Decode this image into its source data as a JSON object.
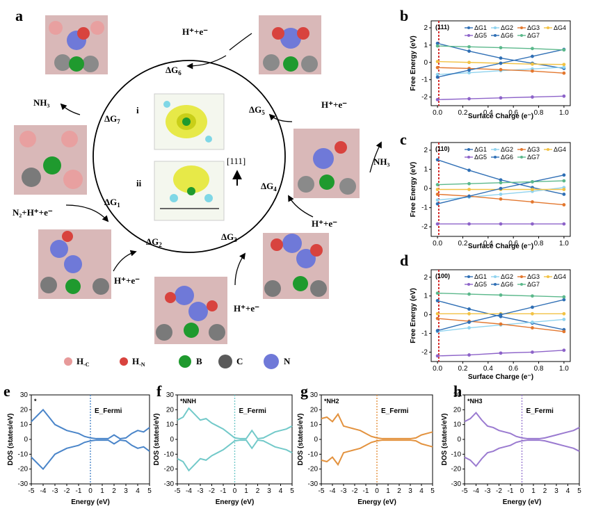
{
  "panel_labels": [
    "a",
    "b",
    "c",
    "d",
    "e",
    "f",
    "g",
    "h"
  ],
  "cycle": {
    "steps": [
      {
        "sym": "ΔG",
        "sub": "1"
      },
      {
        "sym": "ΔG",
        "sub": "2"
      },
      {
        "sym": "ΔG",
        "sub": "3"
      },
      {
        "sym": "ΔG",
        "sub": "4"
      },
      {
        "sym": "ΔG",
        "sub": "5"
      },
      {
        "sym": "ΔG",
        "sub": "6"
      },
      {
        "sym": "ΔG",
        "sub": "7"
      }
    ],
    "reactants": [
      "H⁺+e⁻",
      "H⁺+e⁻",
      "H⁺+e⁻",
      "H⁺+e⁻",
      "H⁺+e⁻",
      "N₂+H⁺+e⁻"
    ],
    "products": [
      "NH₃",
      "NH₃"
    ],
    "inset_labels": [
      "i",
      "ii"
    ],
    "direction": "[111]"
  },
  "legend_atoms": [
    {
      "label": "H",
      "sub": "-C",
      "color": "#e79a9a"
    },
    {
      "label": "H",
      "sub": "-N",
      "color": "#d8433e"
    },
    {
      "label": "B",
      "sub": "",
      "color": "#1f9a2e"
    },
    {
      "label": "C",
      "sub": "",
      "color": "#5a5a5a"
    },
    {
      "label": "N",
      "sub": "",
      "color": "#6f79d8"
    }
  ],
  "colors": {
    "dG1": "#2f6fb5",
    "dG2": "#8fd3ef",
    "dG3": "#e3772e",
    "dG4": "#f2c244",
    "dG5": "#8d63c9",
    "dG6": "#2f6fb5",
    "dG7": "#5bb88b",
    "fermi": "#d42020",
    "dos_e": "#4a85c9",
    "dos_f": "#72c9c9",
    "dos_g": "#e3923e",
    "dos_h": "#9a7ad0"
  },
  "chart_data": [
    {
      "type": "line",
      "panel": "b",
      "annotation": "(111)",
      "xlabel": "Surface Charge (e⁻)",
      "ylabel": "Free Energy (eV)",
      "xlim": [
        -0.05,
        1.05
      ],
      "ylim": [
        -2.5,
        2.4
      ],
      "xticks": [
        "0.0",
        "0.2",
        "0.4",
        "0.6",
        "0.8",
        "1.0"
      ],
      "yticks": [
        "-2",
        "-1",
        "0",
        "1",
        "2"
      ],
      "x": [
        0,
        0.25,
        0.5,
        0.75,
        1.0
      ],
      "series": [
        {
          "name": "ΔG1",
          "values": [
            1.1,
            0.65,
            0.25,
            -0.05,
            -0.35
          ]
        },
        {
          "name": "ΔG2",
          "values": [
            -0.7,
            -0.6,
            -0.48,
            -0.38,
            -0.28
          ]
        },
        {
          "name": "ΔG3",
          "values": [
            -0.3,
            -0.35,
            -0.42,
            -0.5,
            -0.62
          ]
        },
        {
          "name": "ΔG4",
          "values": [
            0.05,
            0.0,
            -0.05,
            -0.1,
            -0.12
          ]
        },
        {
          "name": "ΔG5",
          "values": [
            -2.15,
            -2.1,
            -2.05,
            -2.0,
            -1.95
          ]
        },
        {
          "name": "ΔG6",
          "values": [
            -0.85,
            -0.45,
            -0.05,
            0.35,
            0.75
          ]
        },
        {
          "name": "ΔG7",
          "values": [
            0.95,
            0.9,
            0.85,
            0.8,
            0.72
          ]
        }
      ]
    },
    {
      "type": "line",
      "panel": "c",
      "annotation": "(110)",
      "xlabel": "Surface Charge (e⁻)",
      "ylabel": "Free Energy (eV)",
      "xlim": [
        -0.05,
        1.05
      ],
      "ylim": [
        -2.5,
        2.4
      ],
      "xticks": [
        "0.0",
        "0.2",
        "0.4",
        "0.6",
        "0.8",
        "1.0"
      ],
      "yticks": [
        "-2",
        "-1",
        "0",
        "1",
        "2"
      ],
      "x": [
        0,
        0.25,
        0.5,
        0.75,
        1.0
      ],
      "series": [
        {
          "name": "ΔG1",
          "values": [
            1.5,
            0.95,
            0.45,
            0.05,
            -0.3
          ]
        },
        {
          "name": "ΔG2",
          "values": [
            -0.6,
            -0.45,
            -0.3,
            -0.15,
            0.05
          ]
        },
        {
          "name": "ΔG3",
          "values": [
            -0.3,
            -0.4,
            -0.55,
            -0.7,
            -0.85
          ]
        },
        {
          "name": "ΔG4",
          "values": [
            -0.05,
            -0.05,
            -0.05,
            -0.05,
            -0.05
          ]
        },
        {
          "name": "ΔG5",
          "values": [
            -1.85,
            -1.85,
            -1.85,
            -1.85,
            -1.85
          ]
        },
        {
          "name": "ΔG6",
          "values": [
            -0.8,
            -0.4,
            -0.0,
            0.35,
            0.7
          ]
        },
        {
          "name": "ΔG7",
          "values": [
            0.2,
            0.25,
            0.3,
            0.35,
            0.4
          ]
        }
      ]
    },
    {
      "type": "line",
      "panel": "d",
      "annotation": "(100)",
      "xlabel": "Surface Charge (e⁻)",
      "ylabel": "Free Energy (eV)",
      "xlim": [
        -0.05,
        1.05
      ],
      "ylim": [
        -2.5,
        2.4
      ],
      "xticks": [
        "0.0",
        "0.2",
        "0.4",
        "0.6",
        "0.8",
        "1.0"
      ],
      "yticks": [
        "-2",
        "-1",
        "0",
        "1",
        "2"
      ],
      "x": [
        0,
        0.25,
        0.5,
        0.75,
        1.0
      ],
      "series": [
        {
          "name": "ΔG1",
          "values": [
            0.75,
            0.3,
            -0.1,
            -0.45,
            -0.8
          ]
        },
        {
          "name": "ΔG2",
          "values": [
            -0.9,
            -0.7,
            -0.55,
            -0.4,
            -0.25
          ]
        },
        {
          "name": "ΔG3",
          "values": [
            -0.2,
            -0.35,
            -0.5,
            -0.7,
            -0.9
          ]
        },
        {
          "name": "ΔG4",
          "values": [
            0.05,
            0.05,
            0.05,
            0.05,
            0.05
          ]
        },
        {
          "name": "ΔG5",
          "values": [
            -2.2,
            -2.15,
            -2.05,
            -2.0,
            -1.9
          ]
        },
        {
          "name": "ΔG6",
          "values": [
            -0.85,
            -0.4,
            0.0,
            0.4,
            0.8
          ]
        },
        {
          "name": "ΔG7",
          "values": [
            1.15,
            1.1,
            1.05,
            1.0,
            0.95
          ]
        }
      ]
    },
    {
      "type": "line",
      "panel": "e",
      "annotation": "*",
      "xlabel": "Energy (eV)",
      "ylabel": "DOS (states/eV)",
      "fermi_label": "E_Fermi",
      "xlim": [
        -5,
        5
      ],
      "ylim": [
        -30,
        30
      ],
      "xticks": [
        "-5",
        "-4",
        "-3",
        "-2",
        "-1",
        "0",
        "1",
        "2",
        "3",
        "4",
        "5"
      ],
      "yticks": [
        "-30",
        "-20",
        "-10",
        "0",
        "10",
        "20",
        "30"
      ],
      "x": [
        -5,
        -4.5,
        -4,
        -3.5,
        -3,
        -2.5,
        -2,
        -1.5,
        -1,
        -0.5,
        0,
        0.5,
        1,
        1.5,
        2,
        2.5,
        3,
        3.5,
        4,
        4.5,
        5
      ],
      "series": [
        {
          "name": "up",
          "values": [
            12,
            16,
            20,
            15,
            10,
            8,
            6,
            5,
            4,
            2,
            1,
            0.5,
            0.5,
            0.5,
            3,
            0.5,
            1,
            4,
            6,
            5,
            8
          ]
        }
      ]
    },
    {
      "type": "line",
      "panel": "f",
      "annotation": "*NNH",
      "xlabel": "Energy (eV)",
      "ylabel": "DOS (states/eV)",
      "fermi_label": "E_Fermi",
      "xlim": [
        -5,
        5
      ],
      "ylim": [
        -30,
        30
      ],
      "xticks": [
        "-5",
        "-4",
        "-3",
        "-2",
        "-1",
        "0",
        "1",
        "2",
        "3",
        "4",
        "5"
      ],
      "yticks": [
        "-30",
        "-20",
        "-10",
        "0",
        "10",
        "20",
        "30"
      ],
      "x": [
        -5,
        -4.5,
        -4,
        -3.5,
        -3,
        -2.5,
        -2,
        -1.5,
        -1,
        -0.5,
        0,
        0.5,
        1,
        1.5,
        2,
        2.5,
        3,
        3.5,
        4,
        4.5,
        5
      ],
      "series": [
        {
          "name": "up",
          "values": [
            13,
            15,
            21,
            17,
            13,
            14,
            11,
            9,
            7,
            4,
            1,
            0.5,
            0.5,
            6,
            0.5,
            1,
            3,
            5,
            6,
            7,
            9
          ]
        }
      ]
    },
    {
      "type": "line",
      "panel": "g",
      "annotation": "*NH2",
      "xlabel": "Energy (eV)",
      "ylabel": "DOS (states/eV)",
      "fermi_label": "E_Fermi",
      "xlim": [
        -5,
        5
      ],
      "ylim": [
        -30,
        30
      ],
      "xticks": [
        "-5",
        "-4",
        "-3",
        "-2",
        "-1",
        "0",
        "1",
        "2",
        "3",
        "4",
        "5"
      ],
      "yticks": [
        "-30",
        "-20",
        "-10",
        "0",
        "10",
        "20",
        "30"
      ],
      "x": [
        -5,
        -4.5,
        -4,
        -3.5,
        -3,
        -2.5,
        -2,
        -1.5,
        -1,
        -0.5,
        0,
        0.5,
        1,
        1.5,
        2,
        2.5,
        3,
        3.5,
        4,
        4.5,
        5
      ],
      "series": [
        {
          "name": "up",
          "values": [
            14,
            15,
            12,
            17,
            9,
            8,
            7,
            6,
            4,
            2,
            1,
            0.5,
            0.5,
            0.5,
            0.5,
            0.5,
            0.5,
            1,
            3,
            4,
            5
          ]
        }
      ]
    },
    {
      "type": "line",
      "panel": "h",
      "annotation": "*NH3",
      "xlabel": "Energy (eV)",
      "ylabel": "DOS (states/eV)",
      "fermi_label": "E_Fermi",
      "xlim": [
        -5,
        5
      ],
      "ylim": [
        -30,
        30
      ],
      "xticks": [
        "-5",
        "-4",
        "-3",
        "-2",
        "-1",
        "0",
        "1",
        "2",
        "3",
        "4",
        "5"
      ],
      "yticks": [
        "-30",
        "-20",
        "-10",
        "0",
        "10",
        "20",
        "30"
      ],
      "x": [
        -5,
        -4.5,
        -4,
        -3.5,
        -3,
        -2.5,
        -2,
        -1.5,
        -1,
        -0.5,
        0,
        0.5,
        1,
        1.5,
        2,
        2.5,
        3,
        3.5,
        4,
        4.5,
        5
      ],
      "series": [
        {
          "name": "up",
          "values": [
            12,
            14,
            18,
            13,
            9,
            8,
            6,
            5,
            4,
            2,
            1,
            0.5,
            0.5,
            0.5,
            1,
            2,
            3,
            4,
            5,
            6,
            8
          ]
        }
      ]
    }
  ]
}
